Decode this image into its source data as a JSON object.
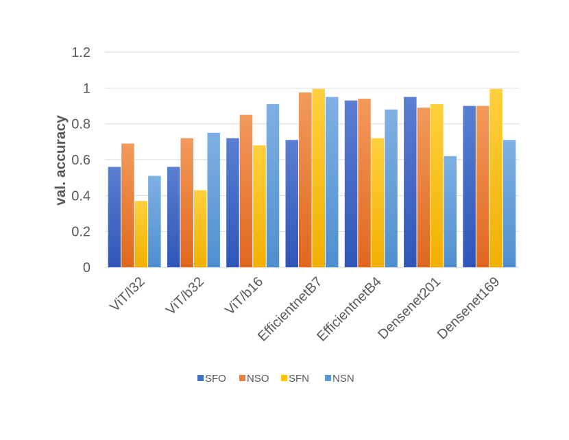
{
  "chart_data": {
    "type": "bar",
    "title": "",
    "xlabel": "",
    "ylabel": "val. accuracy",
    "ylim": [
      0,
      1.2
    ],
    "yticks": [
      "0",
      "0.2",
      "0.4",
      "0.6",
      "0.8",
      "1",
      "1.2"
    ],
    "ytick_values": [
      0,
      0.2,
      0.4,
      0.6,
      0.8,
      1.0,
      1.2
    ],
    "grid": true,
    "legend_position": "bottom",
    "categories": [
      "ViT/l32",
      "ViT/b32",
      "ViT/b16",
      "EfficientnetB7",
      "EfficientnetB4",
      "Densenet201",
      "Densenet169"
    ],
    "series": [
      {
        "name": "SFO",
        "values": [
          0.56,
          0.56,
          0.72,
          0.71,
          0.93,
          0.95,
          0.9
        ],
        "color_top": "#5b7fd1",
        "color_bottom": "#2f55b8",
        "color": "#4472c4"
      },
      {
        "name": "NSO",
        "values": [
          0.69,
          0.72,
          0.85,
          0.975,
          0.94,
          0.89,
          0.9
        ],
        "color_top": "#f29a5c",
        "color_bottom": "#e0671e",
        "color": "#ed7d31"
      },
      {
        "name": "SFN",
        "values": [
          0.37,
          0.43,
          0.68,
          0.995,
          0.72,
          0.91,
          0.995
        ],
        "color_top": "#ffd03d",
        "color_bottom": "#f0b000",
        "color": "#ffc000"
      },
      {
        "name": "NSN",
        "values": [
          0.51,
          0.75,
          0.91,
          0.95,
          0.88,
          0.62,
          0.71
        ],
        "color_top": "#7fb0e3",
        "color_bottom": "#4f8fcf",
        "color": "#5b9bd5"
      }
    ]
  }
}
